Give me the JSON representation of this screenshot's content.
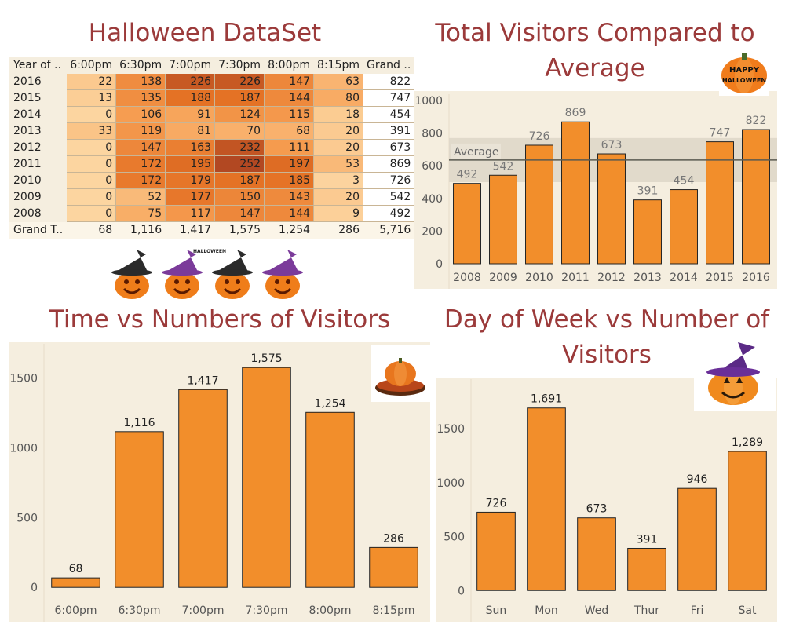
{
  "titles": {
    "dataset": "Halloween DataSet",
    "visitors_line1": "Total Visitors Compared to",
    "visitors_line2": "Average",
    "time": "Time vs Numbers of Visitors",
    "dow_line1": "Day of Week vs Number of",
    "dow_line2": "Visitors"
  },
  "decor": {
    "happy_halloween_word1": "HAPPY",
    "happy_halloween_word2": "HALLOWEEN",
    "pumpkin_banner_text": "HALLOWEEN"
  },
  "colors": {
    "title": "#9b3a3a",
    "bar": "#f28e2b",
    "panel_bg": "#f5eedf",
    "average_band": "#ddd6c8"
  },
  "table": {
    "headers": [
      "Year of ..",
      "6:00pm",
      "6:30pm",
      "7:00pm",
      "7:30pm",
      "8:00pm",
      "8:15pm",
      "Grand .."
    ],
    "rows": [
      {
        "year": "2016",
        "values": [
          22,
          138,
          226,
          226,
          147,
          63
        ],
        "total": "822"
      },
      {
        "year": "2015",
        "values": [
          13,
          135,
          188,
          187,
          144,
          80
        ],
        "total": "747"
      },
      {
        "year": "2014",
        "values": [
          0,
          106,
          91,
          124,
          115,
          18
        ],
        "total": "454"
      },
      {
        "year": "2013",
        "values": [
          33,
          119,
          81,
          70,
          68,
          20
        ],
        "total": "391"
      },
      {
        "year": "2012",
        "values": [
          0,
          147,
          163,
          232,
          111,
          20
        ],
        "total": "673"
      },
      {
        "year": "2011",
        "values": [
          0,
          172,
          195,
          252,
          197,
          53
        ],
        "total": "869"
      },
      {
        "year": "2010",
        "values": [
          0,
          172,
          179,
          187,
          185,
          3
        ],
        "total": "726"
      },
      {
        "year": "2009",
        "values": [
          0,
          52,
          177,
          150,
          143,
          20
        ],
        "total": "542"
      },
      {
        "year": "2008",
        "values": [
          0,
          75,
          117,
          147,
          144,
          9
        ],
        "total": "492"
      }
    ],
    "grand_total_label": "Grand T..",
    "grand_totals": [
      "68",
      "1,116",
      "1,417",
      "1,575",
      "1,254",
      "286",
      "5,716"
    ]
  },
  "chart_data": [
    {
      "type": "bar",
      "title": "Total Visitors Compared to Average",
      "categories": [
        "2008",
        "2009",
        "2010",
        "2011",
        "2012",
        "2013",
        "2014",
        "2015",
        "2016"
      ],
      "values": [
        492,
        542,
        726,
        869,
        673,
        391,
        454,
        747,
        822
      ],
      "labels": [
        "492",
        "542",
        "726",
        "869",
        "673",
        "391",
        "454",
        "747",
        "822"
      ],
      "ylim": [
        0,
        1000
      ],
      "yticks": [
        0,
        200,
        400,
        600,
        800,
        1000
      ],
      "reference_line": {
        "label": "Average",
        "value": 635,
        "band": [
          500,
          770
        ]
      }
    },
    {
      "type": "bar",
      "title": "Time vs Numbers of Visitors",
      "categories": [
        "6:00pm",
        "6:30pm",
        "7:00pm",
        "7:30pm",
        "8:00pm",
        "8:15pm"
      ],
      "values": [
        68,
        1116,
        1417,
        1575,
        1254,
        286
      ],
      "labels": [
        "68",
        "1,116",
        "1,417",
        "1,575",
        "1,254",
        "286"
      ],
      "ylim": [
        -100,
        1700
      ],
      "yticks": [
        0,
        500,
        1000,
        1500
      ]
    },
    {
      "type": "bar",
      "title": "Day of Week vs Number of Visitors",
      "categories": [
        "Sun",
        "Mon",
        "Wed",
        "Thur",
        "Fri",
        "Sat"
      ],
      "values": [
        726,
        1691,
        673,
        391,
        946,
        1289
      ],
      "labels": [
        "726",
        "1,691",
        "673",
        "391",
        "946",
        "1,289"
      ],
      "ylim": [
        -100,
        1900
      ],
      "yticks": [
        0,
        500,
        1000,
        1500
      ]
    }
  ]
}
